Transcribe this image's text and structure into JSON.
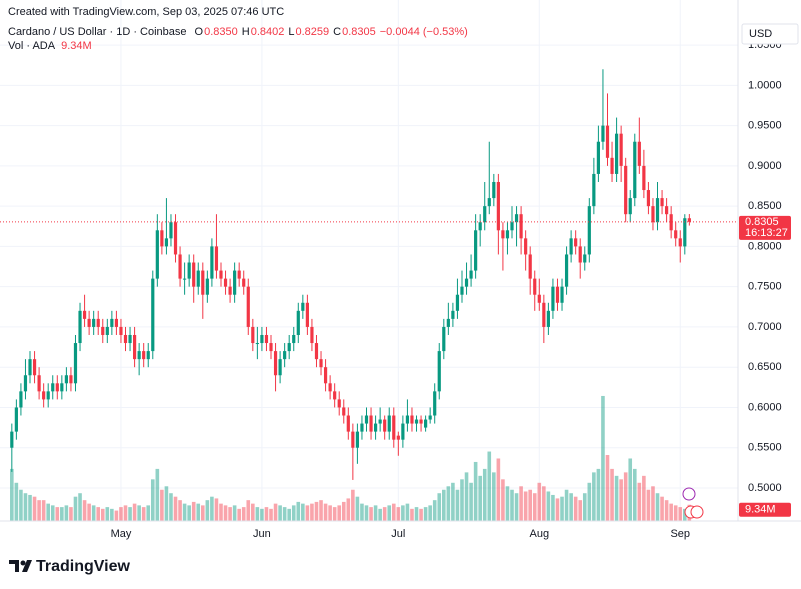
{
  "created": "Created with TradingView.com, Sep 03, 2025 07:46 UTC",
  "brand": "TradingView",
  "chart_data": {
    "type": "candlestick",
    "title": "Cardano / US Dollar · 1D · Coinbase",
    "ohlc_legend": [
      {
        "key": "O",
        "value": "0.8350"
      },
      {
        "key": "H",
        "value": "0.8402"
      },
      {
        "key": "L",
        "value": "0.8259"
      },
      {
        "key": "C",
        "value": "0.8305"
      }
    ],
    "change": "−0.0044 (−0.53%)",
    "currency": "USD",
    "last_price_label": "0.8305",
    "countdown": "16:13:27",
    "up_color": "#089981",
    "down_color": "#f23645",
    "grid": true,
    "ylim": [
      0.459,
      1.106
    ],
    "yticks": [
      {
        "value": 0.5,
        "label": "0.5000"
      },
      {
        "value": 0.55,
        "label": "0.5500"
      },
      {
        "value": 0.6,
        "label": "0.6000"
      },
      {
        "value": 0.65,
        "label": "0.6500"
      },
      {
        "value": 0.7,
        "label": "0.7000"
      },
      {
        "value": 0.75,
        "label": "0.7500"
      },
      {
        "value": 0.8,
        "label": "0.8000"
      },
      {
        "value": 0.85,
        "label": "0.8500"
      },
      {
        "value": 0.9,
        "label": "0.9000"
      },
      {
        "value": 0.95,
        "label": "0.9500"
      },
      {
        "value": 1.0,
        "label": "1.0000"
      },
      {
        "value": 1.05,
        "label": "1.0500"
      }
    ],
    "xlim": [
      -2.6,
      159.7
    ],
    "xticks": [
      {
        "value": 24,
        "label": "May"
      },
      {
        "value": 55,
        "label": "Jun"
      },
      {
        "value": 85,
        "label": "Jul"
      },
      {
        "value": 116,
        "label": "Aug"
      },
      {
        "value": 147,
        "label": "Sep"
      }
    ],
    "candles": [
      [
        0.55,
        0.58,
        0.52,
        0.57
      ],
      [
        0.57,
        0.61,
        0.56,
        0.6
      ],
      [
        0.6,
        0.63,
        0.59,
        0.62
      ],
      [
        0.62,
        0.66,
        0.61,
        0.64
      ],
      [
        0.64,
        0.67,
        0.63,
        0.66
      ],
      [
        0.66,
        0.67,
        0.63,
        0.64
      ],
      [
        0.64,
        0.65,
        0.61,
        0.62
      ],
      [
        0.62,
        0.63,
        0.6,
        0.61
      ],
      [
        0.61,
        0.63,
        0.6,
        0.62
      ],
      [
        0.62,
        0.64,
        0.61,
        0.63
      ],
      [
        0.63,
        0.64,
        0.61,
        0.62
      ],
      [
        0.62,
        0.64,
        0.61,
        0.63
      ],
      [
        0.63,
        0.65,
        0.62,
        0.64
      ],
      [
        0.64,
        0.65,
        0.62,
        0.63
      ],
      [
        0.63,
        0.69,
        0.62,
        0.68
      ],
      [
        0.68,
        0.73,
        0.67,
        0.72
      ],
      [
        0.72,
        0.74,
        0.7,
        0.71
      ],
      [
        0.71,
        0.72,
        0.69,
        0.7
      ],
      [
        0.7,
        0.72,
        0.69,
        0.71
      ],
      [
        0.71,
        0.72,
        0.69,
        0.7
      ],
      [
        0.7,
        0.71,
        0.68,
        0.69
      ],
      [
        0.69,
        0.71,
        0.68,
        0.7
      ],
      [
        0.7,
        0.72,
        0.69,
        0.71
      ],
      [
        0.71,
        0.72,
        0.69,
        0.7
      ],
      [
        0.7,
        0.71,
        0.68,
        0.69
      ],
      [
        0.69,
        0.7,
        0.67,
        0.68
      ],
      [
        0.68,
        0.7,
        0.67,
        0.69
      ],
      [
        0.69,
        0.7,
        0.65,
        0.66
      ],
      [
        0.66,
        0.68,
        0.64,
        0.67
      ],
      [
        0.67,
        0.68,
        0.65,
        0.66
      ],
      [
        0.66,
        0.68,
        0.65,
        0.67
      ],
      [
        0.67,
        0.77,
        0.66,
        0.76
      ],
      [
        0.76,
        0.84,
        0.75,
        0.82
      ],
      [
        0.82,
        0.83,
        0.79,
        0.8
      ],
      [
        0.8,
        0.86,
        0.79,
        0.81
      ],
      [
        0.81,
        0.84,
        0.8,
        0.83
      ],
      [
        0.83,
        0.84,
        0.78,
        0.79
      ],
      [
        0.79,
        0.8,
        0.75,
        0.76
      ],
      [
        0.76,
        0.78,
        0.74,
        0.76
      ],
      [
        0.76,
        0.79,
        0.75,
        0.78
      ],
      [
        0.78,
        0.79,
        0.73,
        0.75
      ],
      [
        0.75,
        0.78,
        0.74,
        0.77
      ],
      [
        0.77,
        0.78,
        0.71,
        0.74
      ],
      [
        0.74,
        0.77,
        0.73,
        0.76
      ],
      [
        0.76,
        0.81,
        0.75,
        0.8
      ],
      [
        0.8,
        0.84,
        0.76,
        0.77
      ],
      [
        0.77,
        0.78,
        0.75,
        0.76
      ],
      [
        0.76,
        0.77,
        0.74,
        0.75
      ],
      [
        0.75,
        0.76,
        0.73,
        0.74
      ],
      [
        0.74,
        0.78,
        0.73,
        0.77
      ],
      [
        0.77,
        0.78,
        0.75,
        0.76
      ],
      [
        0.76,
        0.77,
        0.74,
        0.75
      ],
      [
        0.75,
        0.76,
        0.69,
        0.7
      ],
      [
        0.7,
        0.71,
        0.67,
        0.68
      ],
      [
        0.68,
        0.7,
        0.66,
        0.68
      ],
      [
        0.68,
        0.7,
        0.67,
        0.69
      ],
      [
        0.69,
        0.7,
        0.67,
        0.68
      ],
      [
        0.68,
        0.69,
        0.66,
        0.67
      ],
      [
        0.67,
        0.68,
        0.62,
        0.64
      ],
      [
        0.64,
        0.67,
        0.63,
        0.66
      ],
      [
        0.66,
        0.68,
        0.65,
        0.67
      ],
      [
        0.67,
        0.69,
        0.66,
        0.68
      ],
      [
        0.68,
        0.7,
        0.67,
        0.69
      ],
      [
        0.69,
        0.73,
        0.68,
        0.72
      ],
      [
        0.72,
        0.74,
        0.71,
        0.73
      ],
      [
        0.73,
        0.74,
        0.69,
        0.7
      ],
      [
        0.7,
        0.71,
        0.67,
        0.68
      ],
      [
        0.68,
        0.69,
        0.65,
        0.66
      ],
      [
        0.66,
        0.67,
        0.64,
        0.65
      ],
      [
        0.65,
        0.66,
        0.62,
        0.63
      ],
      [
        0.63,
        0.64,
        0.61,
        0.62
      ],
      [
        0.62,
        0.63,
        0.6,
        0.61
      ],
      [
        0.61,
        0.62,
        0.59,
        0.6
      ],
      [
        0.6,
        0.61,
        0.58,
        0.59
      ],
      [
        0.59,
        0.6,
        0.56,
        0.57
      ],
      [
        0.57,
        0.58,
        0.51,
        0.55
      ],
      [
        0.55,
        0.58,
        0.53,
        0.57
      ],
      [
        0.57,
        0.59,
        0.56,
        0.58
      ],
      [
        0.58,
        0.6,
        0.57,
        0.59
      ],
      [
        0.59,
        0.6,
        0.56,
        0.57
      ],
      [
        0.57,
        0.59,
        0.56,
        0.58
      ],
      [
        0.58,
        0.6,
        0.57,
        0.585
      ],
      [
        0.585,
        0.59,
        0.56,
        0.57
      ],
      [
        0.57,
        0.6,
        0.56,
        0.59
      ],
      [
        0.59,
        0.6,
        0.55,
        0.56
      ],
      [
        0.565,
        0.57,
        0.54,
        0.56
      ],
      [
        0.56,
        0.59,
        0.55,
        0.58
      ],
      [
        0.58,
        0.61,
        0.57,
        0.59
      ],
      [
        0.59,
        0.6,
        0.57,
        0.58
      ],
      [
        0.58,
        0.59,
        0.57,
        0.585
      ],
      [
        0.585,
        0.59,
        0.57,
        0.58
      ],
      [
        0.575,
        0.59,
        0.57,
        0.585
      ],
      [
        0.585,
        0.6,
        0.58,
        0.59
      ],
      [
        0.59,
        0.63,
        0.58,
        0.62
      ],
      [
        0.62,
        0.68,
        0.61,
        0.67
      ],
      [
        0.67,
        0.71,
        0.66,
        0.7
      ],
      [
        0.7,
        0.73,
        0.69,
        0.71
      ],
      [
        0.71,
        0.73,
        0.7,
        0.72
      ],
      [
        0.72,
        0.76,
        0.71,
        0.74
      ],
      [
        0.74,
        0.77,
        0.73,
        0.75
      ],
      [
        0.75,
        0.78,
        0.74,
        0.76
      ],
      [
        0.76,
        0.79,
        0.75,
        0.77
      ],
      [
        0.77,
        0.84,
        0.76,
        0.82
      ],
      [
        0.82,
        0.84,
        0.8,
        0.83
      ],
      [
        0.83,
        0.88,
        0.82,
        0.85
      ],
      [
        0.85,
        0.93,
        0.84,
        0.86
      ],
      [
        0.86,
        0.89,
        0.85,
        0.88
      ],
      [
        0.88,
        0.89,
        0.79,
        0.82
      ],
      [
        0.82,
        0.83,
        0.77,
        0.81
      ],
      [
        0.81,
        0.83,
        0.79,
        0.82
      ],
      [
        0.82,
        0.85,
        0.81,
        0.83
      ],
      [
        0.83,
        0.85,
        0.8,
        0.84
      ],
      [
        0.84,
        0.85,
        0.79,
        0.81
      ],
      [
        0.81,
        0.82,
        0.77,
        0.79
      ],
      [
        0.79,
        0.8,
        0.74,
        0.76
      ],
      [
        0.76,
        0.77,
        0.72,
        0.74
      ],
      [
        0.74,
        0.76,
        0.72,
        0.73
      ],
      [
        0.73,
        0.74,
        0.68,
        0.7
      ],
      [
        0.7,
        0.73,
        0.69,
        0.72
      ],
      [
        0.72,
        0.76,
        0.71,
        0.75
      ],
      [
        0.75,
        0.76,
        0.72,
        0.73
      ],
      [
        0.73,
        0.76,
        0.72,
        0.75
      ],
      [
        0.75,
        0.8,
        0.74,
        0.79
      ],
      [
        0.79,
        0.82,
        0.78,
        0.81
      ],
      [
        0.81,
        0.82,
        0.79,
        0.8
      ],
      [
        0.8,
        0.81,
        0.76,
        0.78
      ],
      [
        0.78,
        0.8,
        0.77,
        0.79
      ],
      [
        0.79,
        0.86,
        0.78,
        0.85
      ],
      [
        0.85,
        0.91,
        0.84,
        0.89
      ],
      [
        0.89,
        0.95,
        0.88,
        0.93
      ],
      [
        0.93,
        1.02,
        0.92,
        0.95
      ],
      [
        0.95,
        0.99,
        0.9,
        0.91
      ],
      [
        0.91,
        0.93,
        0.88,
        0.89
      ],
      [
        0.89,
        0.96,
        0.88,
        0.94
      ],
      [
        0.94,
        0.95,
        0.88,
        0.9
      ],
      [
        0.9,
        0.91,
        0.83,
        0.84
      ],
      [
        0.84,
        0.87,
        0.83,
        0.86
      ],
      [
        0.86,
        0.94,
        0.85,
        0.93
      ],
      [
        0.93,
        0.96,
        0.89,
        0.9
      ],
      [
        0.9,
        0.92,
        0.86,
        0.87
      ],
      [
        0.87,
        0.88,
        0.84,
        0.85
      ],
      [
        0.85,
        0.86,
        0.82,
        0.83
      ],
      [
        0.83,
        0.88,
        0.82,
        0.86
      ],
      [
        0.86,
        0.87,
        0.84,
        0.85
      ],
      [
        0.85,
        0.86,
        0.83,
        0.84
      ],
      [
        0.84,
        0.85,
        0.81,
        0.82
      ],
      [
        0.82,
        0.83,
        0.8,
        0.81
      ],
      [
        0.81,
        0.82,
        0.78,
        0.8
      ],
      [
        0.8,
        0.84,
        0.79,
        0.835
      ],
      [
        0.835,
        0.8402,
        0.8259,
        0.8305
      ]
    ],
    "volume": {
      "name": "Vol · ADA",
      "last_label": "9.34M",
      "vlim": [
        0,
        300
      ],
      "values": [
        30,
        22,
        18,
        16,
        15,
        14,
        12,
        12,
        10,
        9,
        8,
        8,
        9,
        8,
        14,
        16,
        12,
        10,
        9,
        8,
        7,
        8,
        7,
        6,
        8,
        9,
        8,
        10,
        9,
        8,
        9,
        24,
        30,
        18,
        20,
        16,
        14,
        12,
        10,
        9,
        11,
        10,
        9,
        12,
        14,
        13,
        10,
        9,
        8,
        9,
        7,
        8,
        12,
        10,
        8,
        7,
        8,
        7,
        10,
        9,
        8,
        7,
        9,
        11,
        10,
        9,
        10,
        11,
        12,
        10,
        9,
        8,
        9,
        11,
        13,
        18,
        14,
        10,
        9,
        8,
        9,
        7,
        8,
        9,
        10,
        8,
        9,
        10,
        7,
        8,
        7,
        8,
        9,
        12,
        16,
        18,
        20,
        22,
        18,
        24,
        28,
        22,
        34,
        26,
        30,
        40,
        28,
        36,
        24,
        20,
        18,
        16,
        20,
        17,
        18,
        16,
        22,
        20,
        17,
        15,
        13,
        14,
        18,
        16,
        14,
        12,
        16,
        22,
        28,
        30,
        72,
        38,
        30,
        26,
        24,
        28,
        36,
        30,
        22,
        26,
        18,
        20,
        16,
        14,
        12,
        10,
        9,
        8,
        7,
        9.34
      ]
    }
  }
}
